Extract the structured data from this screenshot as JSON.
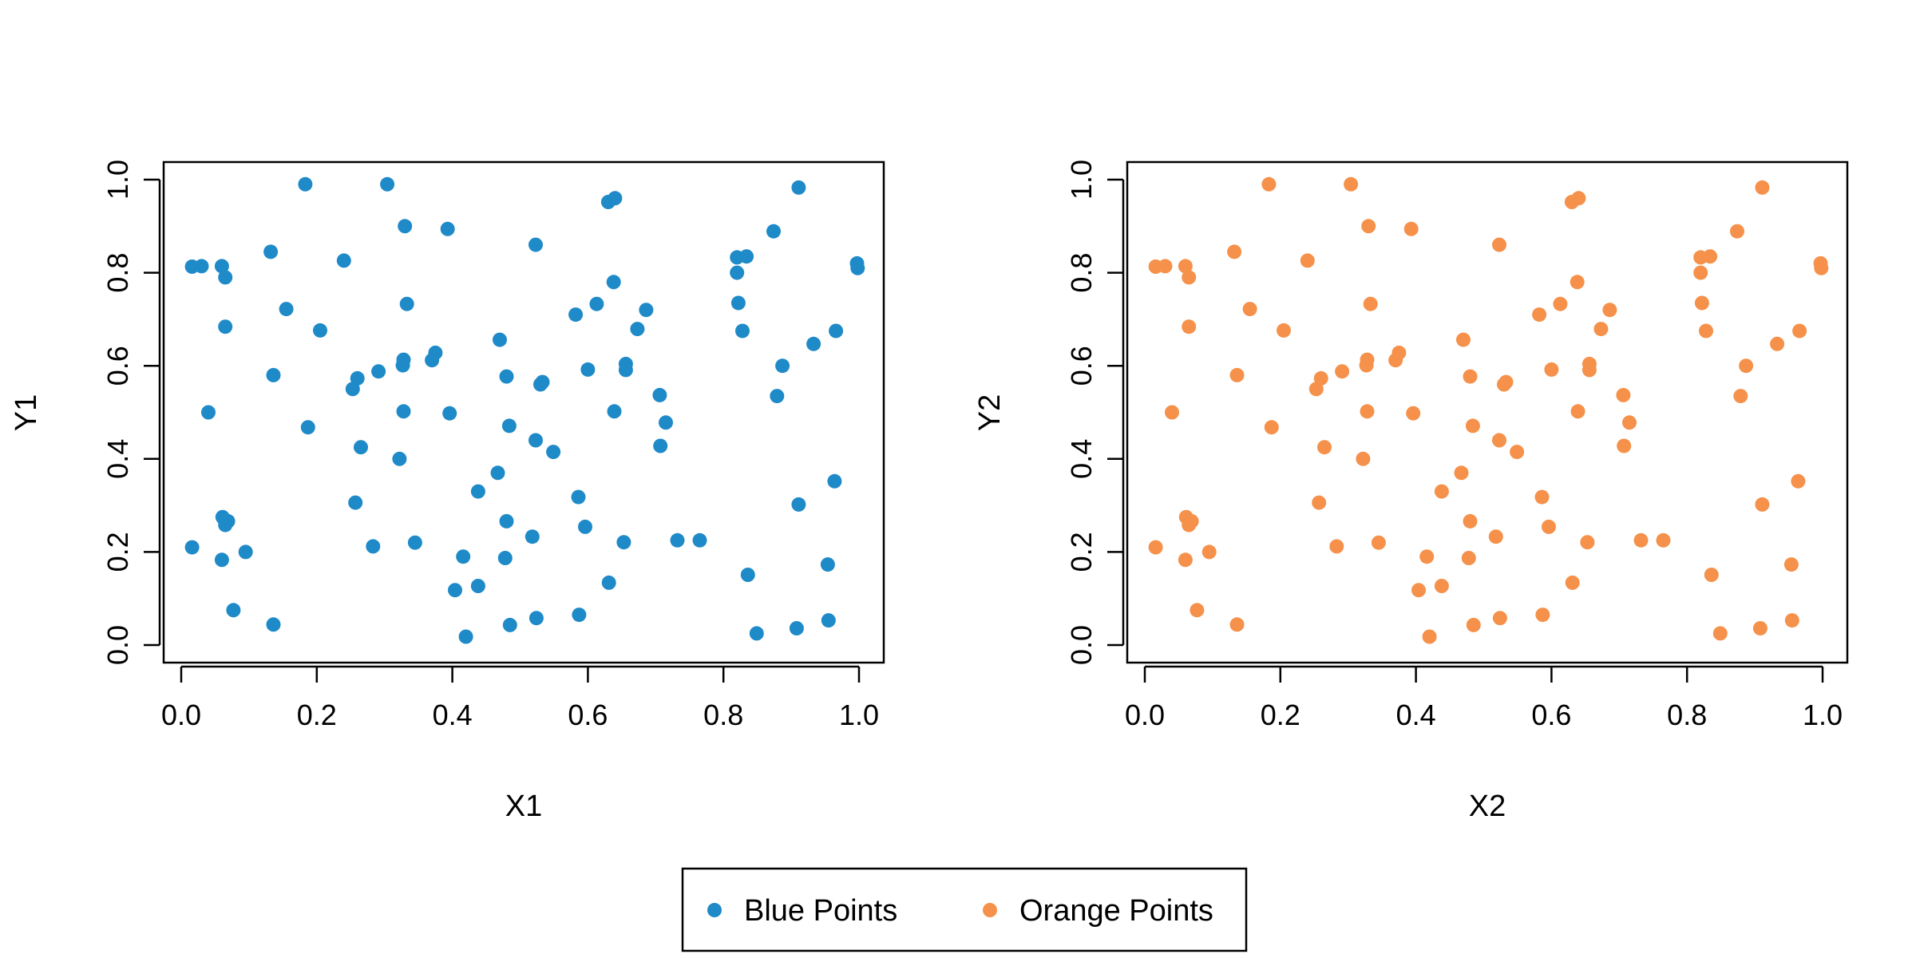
{
  "chart_data": [
    {
      "type": "scatter",
      "title": "",
      "xlabel": "X1",
      "ylabel": "Y1",
      "xlim": [
        0,
        1
      ],
      "ylim": [
        0,
        1
      ],
      "xticks": [
        "0.0",
        "0.2",
        "0.4",
        "0.6",
        "0.8",
        "1.0"
      ],
      "yticks": [
        "0.0",
        "0.2",
        "0.4",
        "0.6",
        "0.8",
        "1.0"
      ],
      "grid": false,
      "color": "#1f8ac8",
      "series": [
        {
          "name": "Blue Points",
          "x": [
            0.016,
            0.03,
            0.06,
            0.065,
            0.132,
            0.183,
            0.24,
            0.304,
            0.33,
            0.393,
            0.523,
            0.63,
            0.64,
            0.911,
            0.82,
            0.82,
            0.834,
            0.874,
            0.997,
            0.998,
            0.155,
            0.065,
            0.205,
            0.333,
            0.47,
            0.375,
            0.37,
            0.582,
            0.613,
            0.638,
            0.686,
            0.673,
            0.656,
            0.656,
            0.822,
            0.828,
            0.966,
            0.933,
            0.887,
            0.879,
            0.136,
            0.04,
            0.187,
            0.26,
            0.253,
            0.291,
            0.265,
            0.328,
            0.327,
            0.328,
            0.396,
            0.48,
            0.533,
            0.53,
            0.6,
            0.639,
            0.706,
            0.715,
            0.707,
            0.484,
            0.523,
            0.549,
            0.467,
            0.322,
            0.438,
            0.586,
            0.257,
            0.061,
            0.069,
            0.065,
            0.016,
            0.06,
            0.095,
            0.283,
            0.345,
            0.48,
            0.518,
            0.596,
            0.653,
            0.732,
            0.765,
            0.964,
            0.911,
            0.478,
            0.416,
            0.954,
            0.836,
            0.404,
            0.438,
            0.631,
            0.077,
            0.136,
            0.485,
            0.524,
            0.587,
            0.908,
            0.955,
            0.42,
            0.849
          ],
          "y": [
            0.813,
            0.814,
            0.814,
            0.79,
            0.845,
            0.99,
            0.826,
            0.99,
            0.9,
            0.894,
            0.86,
            0.952,
            0.96,
            0.983,
            0.833,
            0.8,
            0.835,
            0.889,
            0.82,
            0.81,
            0.722,
            0.684,
            0.676,
            0.733,
            0.656,
            0.628,
            0.612,
            0.71,
            0.733,
            0.78,
            0.72,
            0.679,
            0.604,
            0.591,
            0.735,
            0.675,
            0.675,
            0.647,
            0.6,
            0.535,
            0.58,
            0.5,
            0.468,
            0.573,
            0.55,
            0.588,
            0.425,
            0.613,
            0.601,
            0.502,
            0.498,
            0.577,
            0.565,
            0.56,
            0.592,
            0.502,
            0.537,
            0.478,
            0.428,
            0.471,
            0.44,
            0.415,
            0.37,
            0.4,
            0.33,
            0.318,
            0.306,
            0.275,
            0.266,
            0.258,
            0.21,
            0.183,
            0.2,
            0.212,
            0.22,
            0.266,
            0.233,
            0.254,
            0.221,
            0.225,
            0.225,
            0.352,
            0.302,
            0.187,
            0.19,
            0.173,
            0.151,
            0.118,
            0.127,
            0.134,
            0.075,
            0.044,
            0.043,
            0.058,
            0.065,
            0.036,
            0.053,
            0.018,
            0.025
          ]
        }
      ]
    },
    {
      "type": "scatter",
      "title": "",
      "xlabel": "X2",
      "ylabel": "Y2",
      "xlim": [
        0,
        1
      ],
      "ylim": [
        0,
        1
      ],
      "xticks": [
        "0.0",
        "0.2",
        "0.4",
        "0.6",
        "0.8",
        "1.0"
      ],
      "yticks": [
        "0.0",
        "0.2",
        "0.4",
        "0.6",
        "0.8",
        "1.0"
      ],
      "grid": false,
      "color": "#f5914a",
      "series": [
        {
          "name": "Orange Points",
          "x": [
            0.016,
            0.03,
            0.06,
            0.065,
            0.132,
            0.183,
            0.24,
            0.304,
            0.33,
            0.393,
            0.523,
            0.63,
            0.64,
            0.911,
            0.82,
            0.82,
            0.834,
            0.874,
            0.997,
            0.998,
            0.155,
            0.065,
            0.205,
            0.333,
            0.47,
            0.375,
            0.37,
            0.582,
            0.613,
            0.638,
            0.686,
            0.673,
            0.656,
            0.656,
            0.822,
            0.828,
            0.966,
            0.933,
            0.887,
            0.879,
            0.136,
            0.04,
            0.187,
            0.26,
            0.253,
            0.291,
            0.265,
            0.328,
            0.327,
            0.328,
            0.396,
            0.48,
            0.533,
            0.53,
            0.6,
            0.639,
            0.706,
            0.715,
            0.707,
            0.484,
            0.523,
            0.549,
            0.467,
            0.322,
            0.438,
            0.586,
            0.257,
            0.061,
            0.069,
            0.065,
            0.016,
            0.06,
            0.095,
            0.283,
            0.345,
            0.48,
            0.518,
            0.596,
            0.653,
            0.732,
            0.765,
            0.964,
            0.911,
            0.478,
            0.416,
            0.954,
            0.836,
            0.404,
            0.438,
            0.631,
            0.077,
            0.136,
            0.485,
            0.524,
            0.587,
            0.908,
            0.955,
            0.42,
            0.849
          ],
          "y": [
            0.813,
            0.814,
            0.814,
            0.79,
            0.845,
            0.99,
            0.826,
            0.99,
            0.9,
            0.894,
            0.86,
            0.952,
            0.96,
            0.983,
            0.833,
            0.8,
            0.835,
            0.889,
            0.82,
            0.81,
            0.722,
            0.684,
            0.676,
            0.733,
            0.656,
            0.628,
            0.612,
            0.71,
            0.733,
            0.78,
            0.72,
            0.679,
            0.604,
            0.591,
            0.735,
            0.675,
            0.675,
            0.647,
            0.6,
            0.535,
            0.58,
            0.5,
            0.468,
            0.573,
            0.55,
            0.588,
            0.425,
            0.613,
            0.601,
            0.502,
            0.498,
            0.577,
            0.565,
            0.56,
            0.592,
            0.502,
            0.537,
            0.478,
            0.428,
            0.471,
            0.44,
            0.415,
            0.37,
            0.4,
            0.33,
            0.318,
            0.306,
            0.275,
            0.266,
            0.258,
            0.21,
            0.183,
            0.2,
            0.212,
            0.22,
            0.266,
            0.233,
            0.254,
            0.221,
            0.225,
            0.225,
            0.352,
            0.302,
            0.187,
            0.19,
            0.173,
            0.151,
            0.118,
            0.127,
            0.134,
            0.075,
            0.044,
            0.043,
            0.058,
            0.065,
            0.036,
            0.053,
            0.018,
            0.025
          ]
        }
      ]
    }
  ],
  "legend": {
    "placement": "bottom-center",
    "items": [
      {
        "label": "Blue Points",
        "color": "#1f8ac8"
      },
      {
        "label": "Orange Points",
        "color": "#f5914a"
      }
    ]
  }
}
